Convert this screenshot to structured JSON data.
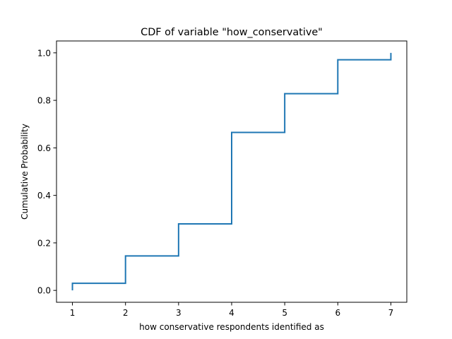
{
  "chart_data": {
    "type": "line",
    "step": true,
    "title": "CDF of variable \"how_conservative\"",
    "xlabel": "how conservative respondents identified as",
    "ylabel": "Cumulative Probability",
    "xlim": [
      0.7,
      7.3
    ],
    "ylim": [
      -0.05,
      1.05
    ],
    "xticks": [
      "1",
      "2",
      "3",
      "4",
      "5",
      "6",
      "7"
    ],
    "yticks": [
      "0.0",
      "0.2",
      "0.4",
      "0.6",
      "0.8",
      "1.0"
    ],
    "grid": false,
    "legend": "none",
    "series": [
      {
        "color": "#1f77b4",
        "x": [
          1,
          1,
          2,
          2,
          3,
          3,
          4,
          4,
          5,
          5,
          6,
          6,
          7,
          7
        ],
        "y": [
          0.0,
          0.03,
          0.03,
          0.145,
          0.145,
          0.28,
          0.28,
          0.665,
          0.665,
          0.828,
          0.828,
          0.971,
          0.971,
          1.0
        ]
      }
    ]
  }
}
